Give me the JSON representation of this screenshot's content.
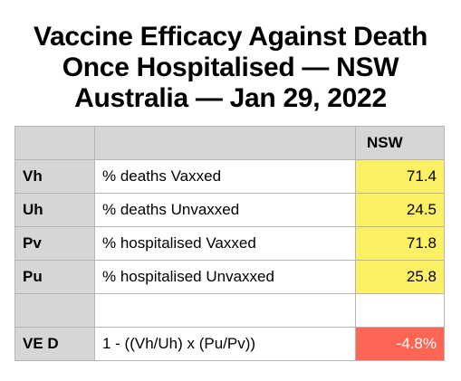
{
  "title": {
    "line1": "Vaccine Efficacy Against Death",
    "line2": "Once Hospitalised — NSW",
    "line3": "Australia — Jan 29, 2022"
  },
  "table": {
    "header": {
      "col1": "",
      "col2": "",
      "col3": "NSW"
    },
    "rows": [
      {
        "key": "Vh",
        "desc": "% deaths Vaxxed",
        "value": "71.4"
      },
      {
        "key": "Uh",
        "desc": "% deaths Unvaxxed",
        "value": "24.5"
      },
      {
        "key": "Pv",
        "desc": "% hospitalised Vaxxed",
        "value": "71.8"
      },
      {
        "key": "Pu",
        "desc": "% hospitalised Unvaxxed",
        "value": "25.8"
      },
      {
        "key": "",
        "desc": "",
        "value": ""
      },
      {
        "key": "VE D",
        "desc": "1 - ((Vh/Uh) x (Pu/Pv))",
        "value": "-4.8%"
      }
    ]
  },
  "colors": {
    "header_gray": "#d6d6d6",
    "value_yellow": "#fef065",
    "result_red": "#fe6552",
    "border": "#b4b4b4"
  }
}
